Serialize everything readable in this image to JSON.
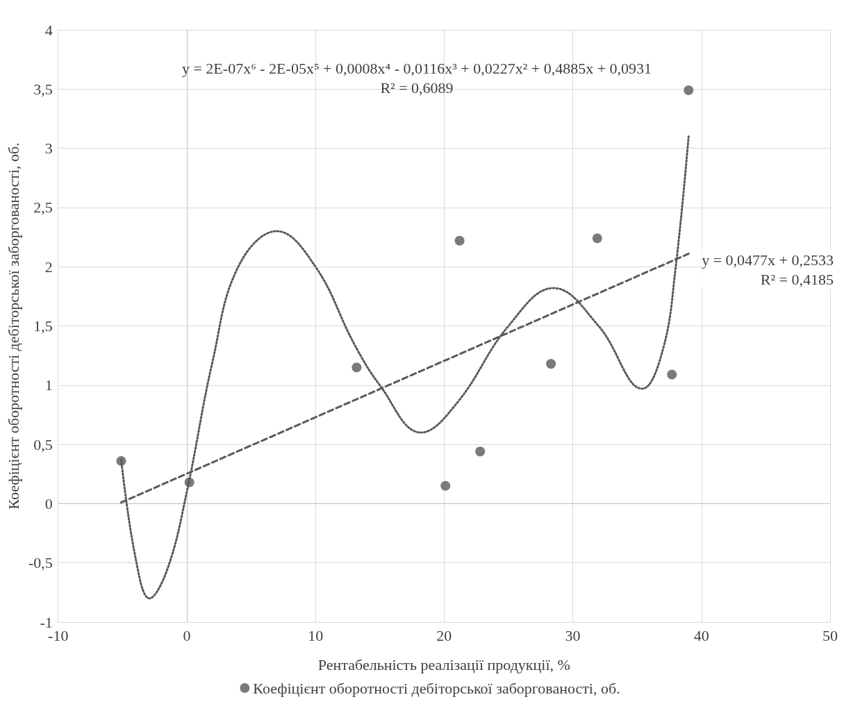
{
  "chart_data": {
    "type": "scatter",
    "xlabel": "Рентабельність реалізації продукції, %",
    "ylabel": "Коефіцієнт оборотності дебіторської заборгованості, об.",
    "x": [
      -5.1,
      0.2,
      13.2,
      20.1,
      21.2,
      22.8,
      28.3,
      31.9,
      37.7,
      39.0
    ],
    "series": [
      {
        "name": "Коефіцієнт оборотності дебіторської заборгованості, об.",
        "color": "#595959",
        "marker": "circle",
        "values": [
          0.36,
          0.18,
          1.15,
          0.15,
          2.22,
          0.44,
          1.18,
          2.24,
          1.09,
          3.49
        ]
      },
      {
        "type": "line",
        "color": "#595959",
        "line_style": "dotted",
        "marker": "none",
        "x": [
          -5.1,
          -4,
          -2.9,
          -1.5,
          0,
          2,
          4,
          7,
          10,
          13,
          15,
          18.2,
          21,
          25,
          28.5,
          32,
          35.4,
          37,
          38,
          39
        ],
        "values": [
          0.37,
          -0.45,
          -0.8,
          -0.55,
          0.1,
          1.2,
          2.0,
          2.3,
          2.0,
          1.35,
          1.0,
          0.6,
          0.85,
          1.5,
          1.82,
          1.5,
          0.97,
          1.3,
          2.0,
          3.1
        ]
      },
      {
        "type": "line",
        "color": "#595959",
        "line_style": "dashed",
        "marker": "none",
        "x": [
          -5.1,
          39
        ],
        "values": [
          0.01,
          2.11
        ]
      }
    ],
    "annotations": [
      "y = 2E-07x⁶ - 2E-05x⁵ + 0,0008x⁴ - 0,0116x³ + 0,0227x² + 0,4885x + 0,0931\nR² = 0,6089",
      "y = 0,0477x + 0,2533\nR² = 0,4185"
    ],
    "xlim": [
      -10,
      50
    ],
    "xticks": [
      -10,
      0,
      10,
      20,
      30,
      40,
      50
    ],
    "ylim": [
      -1,
      4
    ],
    "yticks": [
      -1,
      {
        "value": -0.5,
        "label": "-0,5"
      },
      0,
      {
        "value": 0.5,
        "label": "0,5"
      },
      1,
      {
        "value": 1.5,
        "label": "1,5"
      },
      2,
      {
        "value": 2.5,
        "label": "2,5"
      },
      3,
      {
        "value": 3.5,
        "label": "3,5"
      },
      4
    ],
    "grid": true,
    "legend": "bottom"
  }
}
